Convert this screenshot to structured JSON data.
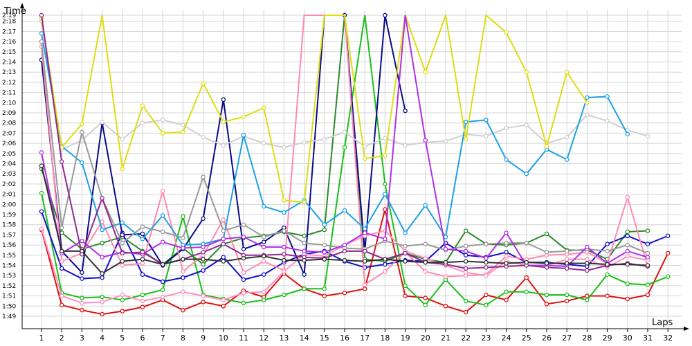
{
  "chart_data": {
    "type": "line",
    "title": "",
    "ylabel": "Time",
    "xlabel": "Laps",
    "x": [
      1,
      2,
      3,
      4,
      5,
      6,
      7,
      8,
      9,
      10,
      11,
      12,
      13,
      14,
      15,
      16,
      17,
      18,
      19,
      20,
      21,
      22,
      23,
      24,
      25,
      26,
      27,
      28,
      29,
      30,
      31,
      32
    ],
    "y_ticks": [
      "1:49",
      "1:50",
      "1:51",
      "1:52",
      "1:53",
      "1:54",
      "1:55",
      "1:56",
      "1:57",
      "1:58",
      "1:59",
      "2:00",
      "2:01",
      "2:02",
      "2:03",
      "2:04",
      "2:05",
      "2:06",
      "2:07",
      "2:08",
      "2:09",
      "2:10",
      "2:11",
      "2:12",
      "2:13",
      "2:14",
      "2:15",
      "2:16",
      "2:17",
      "2:18",
      "2:19"
    ],
    "ylim_seconds": [
      107.2,
      140.5
    ],
    "grid": true,
    "legend": "none",
    "series": [
      {
        "color": "#e01010",
        "values": [
          117.5,
          110.1,
          109.6,
          109.2,
          109.5,
          109.9,
          110.6,
          109.6,
          110.4,
          110.0,
          111.5,
          110.9,
          113.2,
          111.7,
          111.0,
          111.3,
          111.7,
          119.5,
          111.0,
          110.8,
          110.0,
          109.4,
          111.1,
          110.6,
          112.8,
          110.2,
          110.5,
          111.0,
          111.0,
          110.7,
          111.1,
          115.2
        ]
      },
      {
        "color": "#18c018",
        "values": [
          121.1,
          111.3,
          110.8,
          110.9,
          110.6,
          111.1,
          111.6,
          118.8,
          111.1,
          110.7,
          110.3,
          110.6,
          111.1,
          111.7,
          111.7,
          125.6,
          141.0,
          122.0,
          112.0,
          110.1,
          112.6,
          110.5,
          110.1,
          111.4,
          111.4,
          111.1,
          111.1,
          110.6,
          113.1,
          112.2,
          112.1,
          112.9
        ]
      },
      {
        "color": "#2a8a2a",
        "values": [
          123.5,
          117.2,
          115.6,
          116.2,
          116.8,
          115.4,
          114.1,
          115.7,
          114.1,
          116.1,
          116.7,
          116.9,
          117.3,
          116.9,
          117.5,
          141.0,
          114.6,
          114.4,
          115.2,
          114.6,
          114.3,
          117.4,
          116.1,
          116.0,
          116.2,
          117.1,
          115.5,
          115.5,
          114.6,
          117.3,
          117.4,
          null
        ]
      },
      {
        "color": "#1010c8",
        "values": [
          119.3,
          113.7,
          112.7,
          112.8,
          117.2,
          113.1,
          112.4,
          112.8,
          113.5,
          114.8,
          112.6,
          113.1,
          114.3,
          115.1,
          115.4,
          114.4,
          113.8,
          114.1,
          114.5,
          114.4,
          116.2,
          115.0,
          114.8,
          115.3,
          114.3,
          114.3,
          114.1,
          113.9,
          116.1,
          116.9,
          116.1,
          116.9
        ]
      },
      {
        "color": "#0a0a8a",
        "values": [
          134.2,
          115.4,
          113.3,
          128.0,
          117.0,
          117.1,
          114.0,
          115.6,
          118.6,
          130.3,
          115.6,
          116.3,
          117.7,
          113.1,
          141.0,
          139.6,
          115.4,
          139.2,
          129.2,
          null,
          null,
          null,
          null,
          null,
          null,
          null,
          null,
          null,
          null,
          null,
          null,
          null
        ]
      },
      {
        "color": "#ff8ab0",
        "values": [
          135.5,
          114.4,
          115.2,
          118.3,
          114.0,
          114.2,
          121.3,
          113.4,
          115.0,
          118.5,
          113.3,
          114.4,
          113.5,
          141.0,
          141.0,
          141.0,
          112.1,
          113.4,
          115.3,
          113.4,
          112.9,
          113.0,
          113.1,
          114.9,
          114.6,
          115.0,
          115.1,
          115.3,
          114.2,
          120.7,
          113.9,
          null
        ]
      },
      {
        "color": "#ff90c0",
        "values": [
          117.6,
          111.0,
          110.3,
          110.4,
          111.1,
          110.5,
          110.9,
          111.4,
          111.0,
          110.6,
          111.3,
          111.4,
          113.4,
          115.1,
          114.9,
          116.0,
          116.9,
          117.4,
          115.4,
          114.7,
          114.0,
          113.3,
          113.0,
          114.4,
          114.0,
          114.0,
          114.6,
          114.6,
          113.8,
          114.9,
          114.5,
          null
        ]
      },
      {
        "color": "#d0d0d0",
        "values": [
          138.0,
          125.4,
          126.3,
          128.1,
          126.4,
          128.0,
          128.3,
          127.8,
          126.6,
          125.8,
          126.7,
          126.0,
          125.6,
          126.1,
          126.4,
          127.1,
          125.7,
          126.5,
          125.8,
          126.1,
          126.2,
          126.9,
          126.7,
          127.5,
          127.8,
          126.0,
          126.6,
          128.8,
          128.2,
          127.3,
          126.7,
          null
        ]
      },
      {
        "color": "#1ca0e8",
        "values": [
          136.8,
          125.7,
          124.1,
          117.5,
          118.2,
          116.6,
          118.9,
          116.0,
          116.1,
          116.6,
          126.8,
          119.8,
          119.2,
          120.4,
          118.0,
          119.4,
          117.6,
          121.0,
          117.2,
          119.9,
          116.8,
          128.1,
          128.3,
          124.4,
          123.0,
          125.4,
          124.4,
          130.5,
          130.6,
          126.9,
          null,
          null
        ]
      },
      {
        "color": "#dede10",
        "values": [
          138.3,
          125.6,
          127.9,
          141.0,
          123.5,
          129.7,
          127.0,
          127.1,
          131.9,
          128.1,
          128.6,
          129.5,
          120.4,
          120.2,
          141.0,
          141.0,
          124.5,
          124.8,
          141.0,
          133.0,
          141.0,
          126.4,
          141.0,
          136.9,
          133.0,
          125.7,
          133.0,
          130.0,
          null,
          null,
          null,
          null
        ]
      },
      {
        "color": "#999999",
        "values": [
          136.0,
          117.7,
          127.1,
          120.6,
          116.2,
          117.8,
          117.3,
          116.7,
          122.7,
          117.4,
          118.0,
          116.8,
          117.4,
          116.2,
          116.0,
          115.7,
          115.6,
          116.4,
          115.9,
          116.1,
          115.5,
          115.9,
          116.1,
          116.2,
          116.2,
          115.3,
          115.4,
          115.6,
          115.4,
          116.0,
          115.2,
          null
        ]
      },
      {
        "color": "#b030e8",
        "values": [
          125.1,
          115.2,
          116.4,
          114.8,
          115.3,
          115.1,
          116.3,
          115.7,
          115.8,
          116.6,
          116.8,
          115.8,
          115.8,
          115.4,
          115.3,
          116.0,
          117.2,
          116.6,
          141.0,
          126.3,
          115.6,
          115.4,
          114.7,
          117.2,
          114.0,
          114.0,
          113.9,
          115.8,
          114.2,
          115.4,
          114.8,
          null
        ]
      },
      {
        "color": "#902890",
        "values": [
          140.0,
          124.2,
          115.1,
          120.6,
          115.2,
          115.3,
          114.1,
          114.6,
          115.3,
          116.1,
          115.0,
          115.0,
          115.1,
          114.8,
          114.7,
          115.4,
          115.4,
          114.6,
          115.2,
          114.3,
          114.1,
          113.7,
          113.8,
          113.9,
          114.0,
          113.8,
          113.7,
          113.5,
          114.0,
          114.2,
          113.9,
          null
        ]
      },
      {
        "color": "#303030",
        "values": [
          123.8,
          115.4,
          115.4,
          113.2,
          114.4,
          114.6,
          114.1,
          114.6,
          114.6,
          114.4,
          114.7,
          114.9,
          114.5,
          114.5,
          114.6,
          114.5,
          114.4,
          114.6,
          114.4,
          114.3,
          114.3,
          114.4,
          114.3,
          114.2,
          114.3,
          114.2,
          114.2,
          114.2,
          114.1,
          114.1,
          114.0,
          null
        ]
      }
    ]
  }
}
